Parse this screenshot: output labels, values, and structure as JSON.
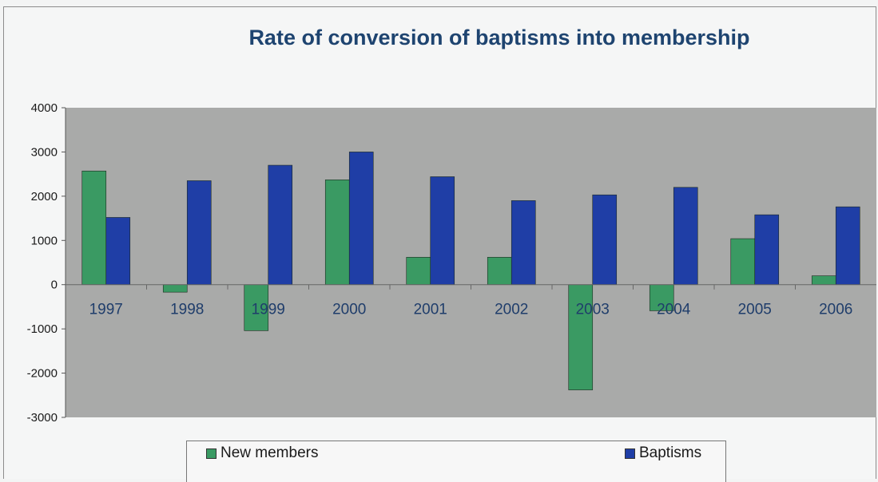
{
  "chart_data": {
    "type": "bar",
    "title": "Rate of conversion of baptisms into membership",
    "categories": [
      "1997",
      "1998",
      "1999",
      "2000",
      "2001",
      "2002",
      "2003",
      "2004",
      "2005",
      "2006"
    ],
    "series": [
      {
        "name": "New members",
        "color": "#3a9a63",
        "values": [
          2570,
          -170,
          -1040,
          2370,
          620,
          620,
          -2380,
          -590,
          1040,
          200
        ]
      },
      {
        "name": "Baptisms",
        "color": "#1f3ea6",
        "values": [
          1520,
          2350,
          2700,
          3000,
          2440,
          1900,
          2030,
          2200,
          1580,
          1760
        ]
      }
    ],
    "ylim": [
      -3000,
      4000
    ],
    "yticks": [
      "4000",
      "3000",
      "2000",
      "1000",
      "0",
      "-1000",
      "-2000",
      "-3000"
    ],
    "xlabel": "",
    "ylabel": "",
    "grid": false,
    "legend_position": "bottom",
    "plot_background": "#a9aaa9"
  }
}
